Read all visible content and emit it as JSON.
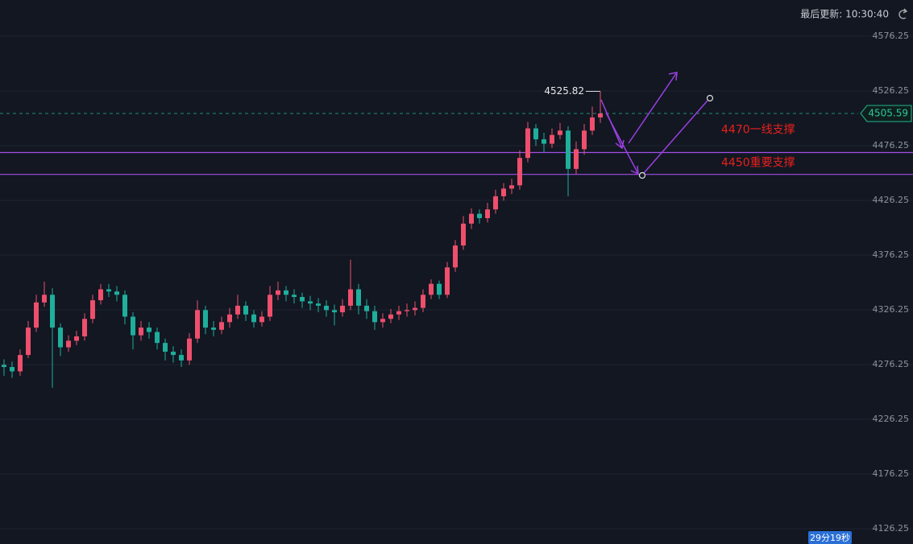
{
  "chart_data": {
    "type": "candlestick",
    "last_update": "最后更新: 10:30:40",
    "countdown": "29分19秒",
    "last_price": 4505.59,
    "high_marker": 4525.82,
    "support_lines": [
      {
        "value": 4470,
        "label": "4470一线支撑"
      },
      {
        "value": 4450,
        "label": "4450重要支撑"
      }
    ],
    "up_color": "#ee4f6c",
    "down_color": "#1fae9c",
    "ylim": [
      4112.3,
      4609.3
    ],
    "yticks": [
      4126.25,
      4176.25,
      4226.25,
      4276.25,
      4326.25,
      4376.25,
      4426.25,
      4476.25,
      4526.25,
      4576.25
    ],
    "grid": true,
    "open": [
      4276,
      4274,
      4270,
      4285,
      4310,
      4333,
      4340,
      4310,
      4292,
      4298,
      4302,
      4318,
      4335,
      4345,
      4343,
      4340,
      4320,
      4303,
      4310,
      4306,
      4296,
      4288,
      4285,
      4280,
      4300,
      4326,
      4310,
      4308,
      4315,
      4322,
      4330,
      4322,
      4315,
      4320,
      4340,
      4344,
      4340,
      4338,
      4334,
      4332,
      4330,
      4326,
      4324,
      4330,
      4345,
      4330,
      4325,
      4315,
      4318,
      4322,
      4325,
      4326,
      4328,
      4340,
      4350,
      4340,
      4365,
      4385,
      4405,
      4414,
      4410,
      4418,
      4430,
      4437,
      4440,
      4465,
      4492,
      4482,
      4478,
      4486,
      4490,
      4455,
      4473,
      4490,
      4502
    ],
    "high": [
      4281,
      4279,
      4290,
      4316,
      4340,
      4352,
      4346,
      4314,
      4303,
      4307,
      4323,
      4340,
      4350,
      4350,
      4348,
      4344,
      4324,
      4316,
      4315,
      4310,
      4300,
      4293,
      4290,
      4305,
      4335,
      4330,
      4316,
      4320,
      4328,
      4340,
      4334,
      4326,
      4325,
      4348,
      4352,
      4348,
      4345,
      4342,
      4339,
      4337,
      4335,
      4331,
      4336,
      4372,
      4350,
      4336,
      4330,
      4323,
      4327,
      4330,
      4332,
      4334,
      4345,
      4354,
      4353,
      4370,
      4390,
      4412,
      4419,
      4418,
      4424,
      4436,
      4442,
      4446,
      4472,
      4498,
      4496,
      4488,
      4492,
      4497,
      4494,
      4480,
      4496,
      4512,
      4525.82
    ],
    "low": [
      4266,
      4264,
      4266,
      4282,
      4306,
      4329,
      4255,
      4284,
      4288,
      4294,
      4298,
      4314,
      4331,
      4338,
      4334,
      4313,
      4290,
      4298,
      4300,
      4290,
      4280,
      4278,
      4274,
      4276,
      4296,
      4304,
      4302,
      4304,
      4310,
      4318,
      4316,
      4310,
      4311,
      4316,
      4335,
      4334,
      4332,
      4328,
      4326,
      4324,
      4320,
      4312,
      4320,
      4326,
      4322,
      4318,
      4308,
      4310,
      4314,
      4317,
      4320,
      4321,
      4324,
      4336,
      4336,
      4337,
      4361,
      4381,
      4400,
      4405,
      4406,
      4414,
      4426,
      4432,
      4436,
      4461,
      4476,
      4470,
      4474,
      4482,
      4430,
      4450,
      4468,
      4486,
      4497
    ],
    "close": [
      4274,
      4270,
      4285,
      4310,
      4333,
      4340,
      4310,
      4292,
      4298,
      4302,
      4318,
      4335,
      4345,
      4343,
      4340,
      4320,
      4303,
      4310,
      4306,
      4296,
      4288,
      4285,
      4280,
      4300,
      4326,
      4310,
      4308,
      4315,
      4322,
      4330,
      4322,
      4315,
      4320,
      4340,
      4344,
      4340,
      4338,
      4334,
      4332,
      4330,
      4326,
      4324,
      4330,
      4345,
      4330,
      4325,
      4315,
      4318,
      4322,
      4325,
      4326,
      4328,
      4340,
      4350,
      4340,
      4365,
      4385,
      4405,
      4414,
      4410,
      4418,
      4430,
      4437,
      4440,
      4465,
      4492,
      4482,
      4478,
      4486,
      4490,
      4455,
      4473,
      4490,
      4502,
      4505.59
    ]
  }
}
